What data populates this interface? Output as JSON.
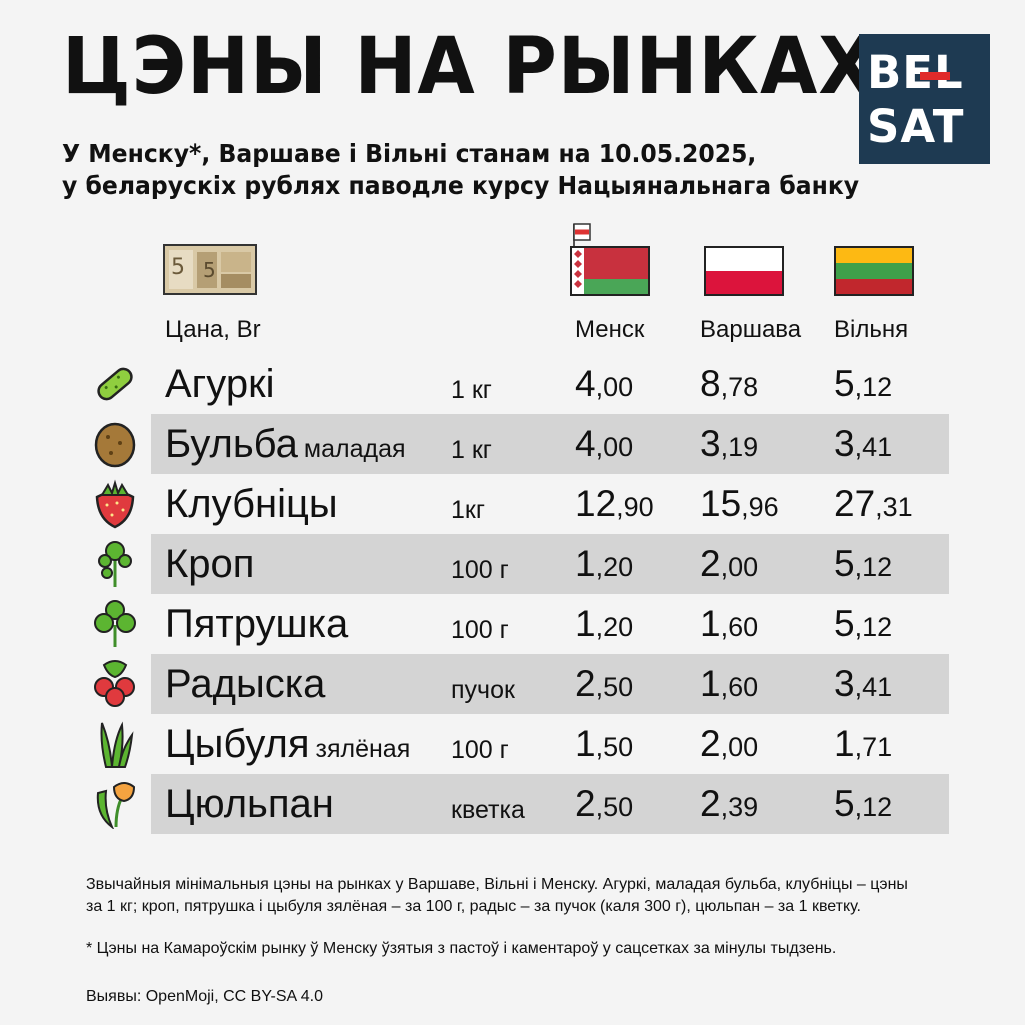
{
  "title": "ЦЭНЫ НА РЫНКАХ",
  "subtitle_line1": "У Менску*, Варшаве і Вільні станам на 10.05.2025,",
  "subtitle_line2": "у беларускіх рублях паводле курсу Нацыянальнага банку",
  "logo": {
    "line1": "BEL",
    "line2": "SAT",
    "bg": "#1e3a52",
    "accent": "#e02a2a"
  },
  "price_label": "Цана, Br",
  "chart_data": {
    "type": "table",
    "columns": [
      "Менск",
      "Варшава",
      "Вільня"
    ],
    "rows": [
      {
        "name": "Агуркі",
        "sub": "",
        "unit": "1 кг",
        "icon": "cucumber-icon",
        "values": [
          [
            "4",
            ",00"
          ],
          [
            "8",
            ",78"
          ],
          [
            "5",
            ",12"
          ]
        ]
      },
      {
        "name": "Бульба",
        "sub": "маладая",
        "unit": "1 кг",
        "icon": "potato-icon",
        "values": [
          [
            "4",
            ",00"
          ],
          [
            "3",
            ",19"
          ],
          [
            "3",
            ",41"
          ]
        ]
      },
      {
        "name": "Клубніцы",
        "sub": "",
        "unit": "1кг",
        "icon": "strawberry-icon",
        "values": [
          [
            "12",
            ",90"
          ],
          [
            "15",
            ",96"
          ],
          [
            "27",
            ",31"
          ]
        ]
      },
      {
        "name": "Кроп",
        "sub": "",
        "unit": "100 г",
        "icon": "dill-icon",
        "values": [
          [
            "1",
            ",20"
          ],
          [
            "2",
            ",00"
          ],
          [
            "5",
            ",12"
          ]
        ]
      },
      {
        "name": "Пятрушка",
        "sub": "",
        "unit": "100 г",
        "icon": "parsley-icon",
        "values": [
          [
            "1",
            ",20"
          ],
          [
            "1",
            ",60"
          ],
          [
            "5",
            ",12"
          ]
        ]
      },
      {
        "name": "Радыска",
        "sub": "",
        "unit": "пучок",
        "icon": "radish-icon",
        "values": [
          [
            "2",
            ",50"
          ],
          [
            "1",
            ",60"
          ],
          [
            "3",
            ",41"
          ]
        ]
      },
      {
        "name": "Цыбуля",
        "sub": "зялёная",
        "unit": "100 г",
        "icon": "green-onion-icon",
        "values": [
          [
            "1",
            ",50"
          ],
          [
            "2",
            ",00"
          ],
          [
            "1",
            ",71"
          ]
        ]
      },
      {
        "name": "Цюльпан",
        "sub": "",
        "unit": "кветка",
        "icon": "tulip-icon",
        "values": [
          [
            "2",
            ",50"
          ],
          [
            "2",
            ",39"
          ],
          [
            "5",
            ",12"
          ]
        ]
      }
    ]
  },
  "notes": {
    "line1": "Звычайныя мінімальныя цэны на рынках у Варшаве, Вільні і Менску. Агуркі, маладая бульба, клубніцы – цэны",
    "line2": "за 1 кг; кроп, пятрушка і цыбуля зялёная – за 100 г,  радыс – за пучок (каля 300 г), цюльпан – за 1 кветку.",
    "footnote": "* Цэны на Камароўскім рынку ў Менску ўзятыя з пастоў і каментароў у сацсетках за мінулы тыдзень.",
    "credits": "Выявы: OpenMoji, CC BY-SA 4.0"
  }
}
